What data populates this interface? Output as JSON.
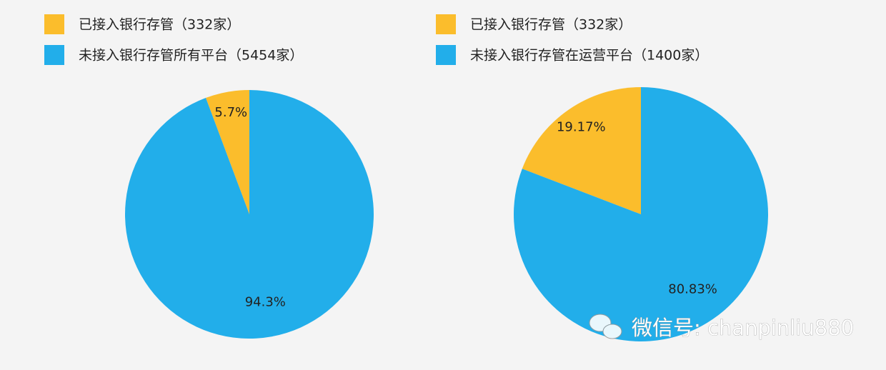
{
  "chart_data": [
    {
      "type": "pie",
      "categories": [
        "已接入银行存管（332家）",
        "未接入银行存管所有平台（5454家）"
      ],
      "values": [
        5.7,
        94.3
      ],
      "value_labels": [
        "5.7%",
        "94.3%"
      ],
      "colors": [
        "#fbbd2c",
        "#22aeea"
      ]
    },
    {
      "type": "pie",
      "categories": [
        "已接入银行存管（332家）",
        "未接入银行存管在运营平台（1400家）"
      ],
      "values": [
        19.17,
        80.83
      ],
      "value_labels": [
        "19.17%",
        "80.83%"
      ],
      "colors": [
        "#fbbd2c",
        "#22aeea"
      ]
    }
  ],
  "watermark": "微信号: chanpinliu880"
}
